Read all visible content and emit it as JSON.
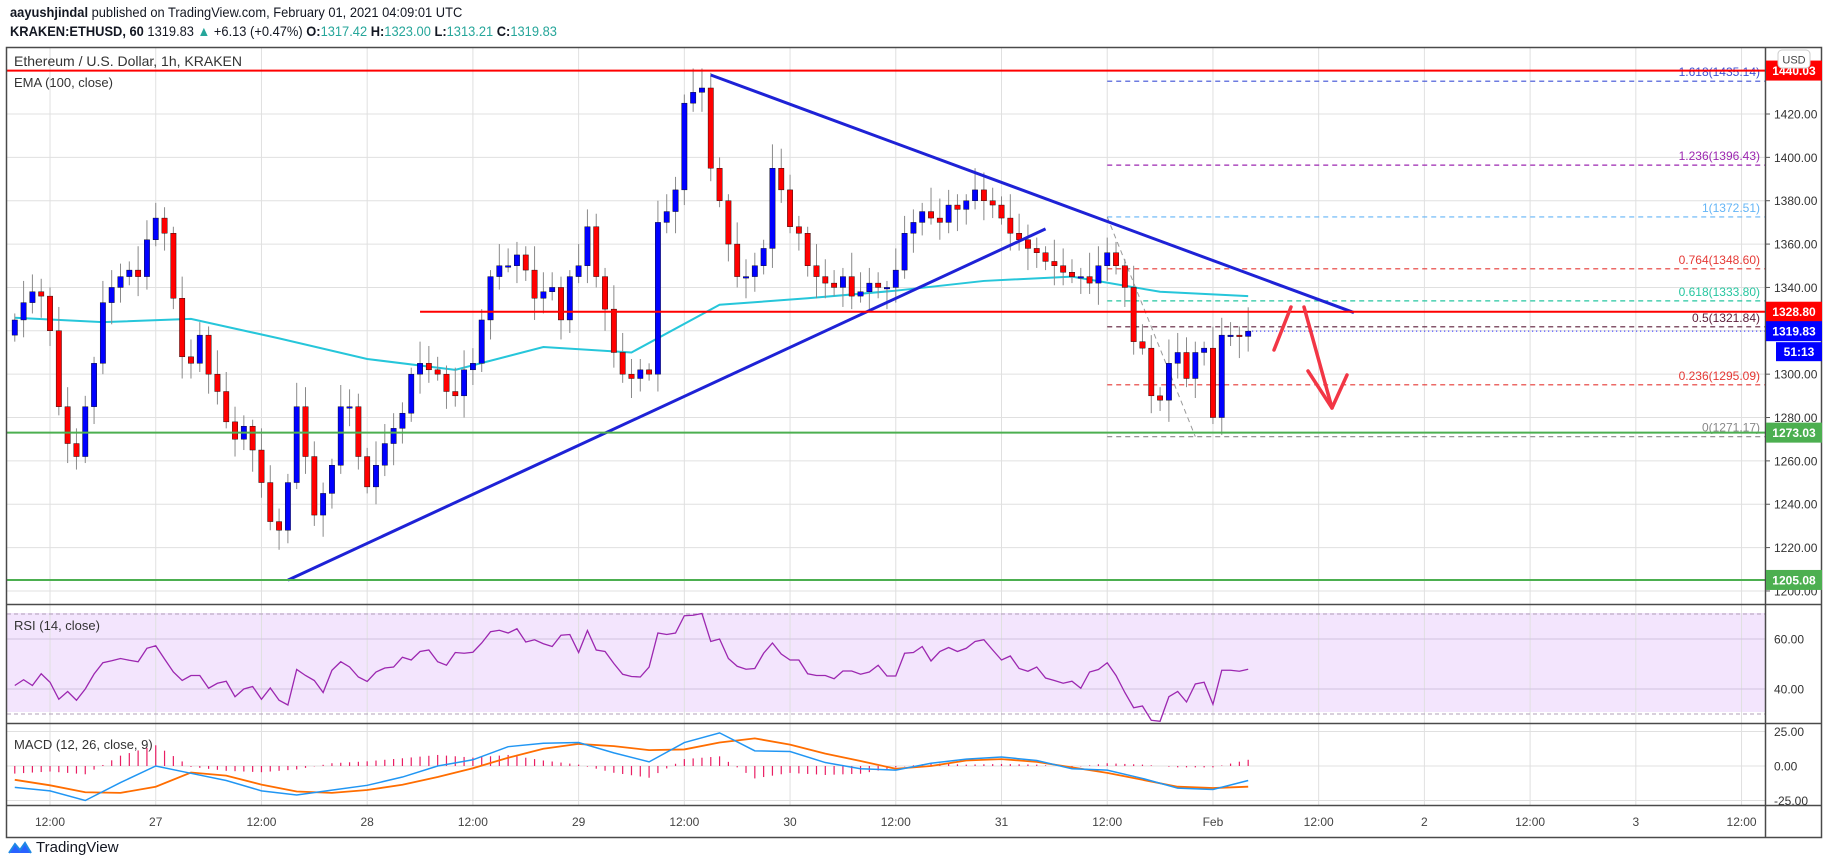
{
  "header": {
    "author": "aayushjindal",
    "published": "published on TradingView.com, February 01, 2021 04:09:01 UTC",
    "symbol": "KRAKEN:ETHUSD, 60",
    "last": "1319.83",
    "change": "+6.13 (+0.47%)",
    "o_label": "O:",
    "o": "1317.42",
    "h_label": "H:",
    "h": "1323.00",
    "l_label": "L:",
    "l": "1313.21",
    "c_label": "C:",
    "c": "1319.83"
  },
  "legend": {
    "title": "Ethereum / U.S. Dollar, 1h, KRAKEN",
    "ema": "EMA (100, close)",
    "rsi": "RSI (14, close)",
    "macd": "MACD (12, 26, close, 9)"
  },
  "currency_button": "USD",
  "brand": "TradingView",
  "colors": {
    "bull": "#0000ff",
    "bear": "#ff0000",
    "ema": "#26c6da",
    "trendline": "#1e22d6",
    "resistance": "#ff0000",
    "support": "#4caf50",
    "rsi_line": "#9c27b0",
    "rsi_band": "#f3e5fd",
    "macd_line": "#2196f3",
    "signal_line": "#ff6d00",
    "histogram": "#e91e63",
    "arrow": "#f23645"
  },
  "chart_data": {
    "type": "candlestick",
    "interval": "1h",
    "first_candle": "2021-01-26 08:00",
    "ylim": [
      1195,
      1445
    ],
    "price_ticks": [
      1200,
      1220,
      1240,
      1260,
      1280,
      1300,
      1340,
      1360,
      1380,
      1400,
      1420
    ],
    "x_ticks": [
      {
        "t": "2021-01-26 12:00",
        "label": "12:00"
      },
      {
        "t": "2021-01-27 00:00",
        "label": "27"
      },
      {
        "t": "2021-01-27 12:00",
        "label": "12:00"
      },
      {
        "t": "2021-01-28 00:00",
        "label": "28"
      },
      {
        "t": "2021-01-28 12:00",
        "label": "12:00"
      },
      {
        "t": "2021-01-29 00:00",
        "label": "29"
      },
      {
        "t": "2021-01-29 12:00",
        "label": "12:00"
      },
      {
        "t": "2021-01-30 00:00",
        "label": "30"
      },
      {
        "t": "2021-01-30 12:00",
        "label": "12:00"
      },
      {
        "t": "2021-01-31 00:00",
        "label": "31"
      },
      {
        "t": "2021-01-31 12:00",
        "label": "12:00"
      },
      {
        "t": "2021-02-01 00:00",
        "label": "Feb"
      },
      {
        "t": "2021-02-01 12:00",
        "label": "12:00"
      },
      {
        "t": "2021-02-02 00:00",
        "label": "2"
      },
      {
        "t": "2021-02-02 12:00",
        "label": "12:00"
      },
      {
        "t": "2021-02-03 00:00",
        "label": "3"
      },
      {
        "t": "2021-02-03 12:00",
        "label": "12:00"
      }
    ],
    "closes": [
      1325,
      1333,
      1338,
      1336,
      1320,
      1285,
      1268,
      1262,
      1285,
      1305,
      1333,
      1340,
      1345,
      1348,
      1345,
      1362,
      1372,
      1365,
      1335,
      1308,
      1305,
      1318,
      1300,
      1292,
      1278,
      1270,
      1276,
      1265,
      1250,
      1232,
      1228,
      1250,
      1285,
      1262,
      1235,
      1245,
      1258,
      1285,
      1285,
      1262,
      1248,
      1258,
      1268,
      1275,
      1282,
      1300,
      1305,
      1302,
      1300,
      1292,
      1290,
      1302,
      1305,
      1325,
      1345,
      1350,
      1350,
      1355,
      1348,
      1335,
      1338,
      1340,
      1325,
      1345,
      1350,
      1368,
      1345,
      1330,
      1310,
      1300,
      1298,
      1302,
      1300,
      1370,
      1375,
      1385,
      1425,
      1430,
      1432,
      1395,
      1380,
      1360,
      1345,
      1345,
      1350,
      1358,
      1395,
      1385,
      1368,
      1365,
      1350,
      1345,
      1342,
      1340,
      1345,
      1336,
      1338,
      1342,
      1340,
      1340,
      1348,
      1365,
      1370,
      1375,
      1372,
      1370,
      1378,
      1376,
      1380,
      1385,
      1380,
      1378,
      1372,
      1365,
      1362,
      1358,
      1356,
      1352,
      1350,
      1347,
      1345,
      1345,
      1342,
      1350,
      1356,
      1350,
      1340,
      1315,
      1312,
      1290,
      1288,
      1305,
      1310,
      1298,
      1310,
      1312,
      1280,
      1318,
      1318,
      1317.42,
      1319.83
    ],
    "ema100": {
      "interval": "10h",
      "values": [
        1326,
        1324,
        1325.5,
        1316.5,
        1307,
        1302,
        1312.5,
        1310,
        1332,
        1335,
        1338.5,
        1343,
        1345,
        1338,
        1336
      ]
    },
    "horizontal_lines": [
      {
        "price": 1440.03,
        "label": "1440.03",
        "kind": "resistance"
      },
      {
        "price": 1328.8,
        "label": "1328.80",
        "kind": "resistance",
        "from": "2021-01-28 06:00"
      },
      {
        "price": 1273.03,
        "label": "1273.03",
        "kind": "support"
      },
      {
        "price": 1205.08,
        "label": "1205.08",
        "kind": "support"
      }
    ],
    "trendlines": [
      {
        "from": [
          "2021-01-27 15:00",
          1205
        ],
        "to": [
          "2021-01-31 05:00",
          1367
        ]
      },
      {
        "from": [
          "2021-01-29 15:00",
          1438
        ],
        "to": [
          "2021-02-01 16:00",
          1328.4
        ]
      }
    ],
    "fibonacci": {
      "from": "2021-01-31 12:00",
      "diagonal": {
        "from": [
          "2021-01-31 12:00",
          1372.51
        ],
        "to": [
          "2021-01-31 22:00",
          1271.17
        ]
      },
      "levels": [
        {
          "ratio": "1.618",
          "price": 1435.14,
          "label": "1.618(1435.14)",
          "color": "#3f51d6"
        },
        {
          "ratio": "1.236",
          "price": 1396.43,
          "label": "1.236(1396.43)",
          "color": "#9c27b0"
        },
        {
          "ratio": "1",
          "price": 1372.51,
          "label": "1(1372.51)",
          "color": "#64b5f6"
        },
        {
          "ratio": "0.764",
          "price": 1348.6,
          "label": "0.764(1348.60)",
          "color": "#e53935"
        },
        {
          "ratio": "0.618",
          "price": 1333.8,
          "label": "0.618(1333.80)",
          "color": "#26c6a0"
        },
        {
          "ratio": "0.5",
          "price": 1321.84,
          "label": "0.5(1321.84)",
          "color": "#5d1e3a"
        },
        {
          "ratio": "0.236",
          "price": 1295.09,
          "label": "0.236(1295.09)",
          "color": "#e53935"
        },
        {
          "ratio": "0",
          "price": 1271.17,
          "label": "0(1271.17)",
          "color": "#888888"
        }
      ]
    },
    "last_price": {
      "price": 1319.83,
      "label": "1319.83",
      "countdown": "51:13"
    },
    "rsi": {
      "levels": [
        70,
        30
      ],
      "ticks": [
        {
          "v": 60,
          "label": "60.00"
        },
        {
          "v": 40,
          "label": "40.00"
        }
      ],
      "values": [
        41.4,
        43.7,
        41.4,
        46.1,
        42.7,
        35.9,
        39,
        35.5,
        40,
        46,
        50.5,
        51.3,
        52.2,
        51.5,
        50.9,
        56.3,
        57.3,
        52,
        46.8,
        43.4,
        45.4,
        45.4,
        40.3,
        42.3,
        43.1,
        36.9,
        40,
        41,
        35.9,
        40.4,
        35.5,
        33.6,
        47.8,
        45.4,
        43.4,
        38.6,
        47.5,
        50.9,
        48.8,
        44.8,
        43,
        46.8,
        48.4,
        48.8,
        52.7,
        51.6,
        55,
        55.6,
        50.9,
        49.5,
        54.6,
        54.3,
        54.7,
        58.4,
        62.9,
        63.5,
        62.4,
        64.1,
        58.8,
        59.7,
        58.1,
        57,
        61.5,
        61.8,
        54.6,
        63.4,
        55.6,
        55,
        50.2,
        45.9,
        45,
        44.8,
        48.8,
        62.4,
        61.8,
        62.4,
        69.3,
        69.5,
        70.2,
        59,
        60,
        52.2,
        49.1,
        47.9,
        48.2,
        54.3,
        58.4,
        54,
        51.6,
        51.6,
        46.1,
        45.4,
        45.4,
        44.1,
        47.2,
        47.2,
        45.9,
        46.8,
        49.5,
        45.2,
        45.2,
        54.3,
        54.6,
        57,
        51.2,
        55,
        56.6,
        55,
        56.3,
        59,
        59.7,
        55.6,
        51.6,
        53.2,
        48.2,
        47.1,
        48.8,
        44.4,
        43.4,
        42.3,
        43.1,
        40.3,
        46.8,
        47.8,
        50.5,
        45.4,
        38.6,
        32.5,
        33.2,
        27.5,
        27.1,
        36.9,
        39,
        34.8,
        42,
        42.7,
        33.9,
        47.5,
        47.5,
        47.1,
        47.9
      ]
    },
    "macd": {
      "interval": "4h",
      "ticks": [
        {
          "v": 25,
          "label": "25.00"
        },
        {
          "v": 0,
          "label": "0.00"
        },
        {
          "v": -25,
          "label": "-25.00"
        }
      ],
      "macd": [
        -15.5,
        -18,
        -25,
        -12,
        0,
        -5.3,
        -10.5,
        -18,
        -21,
        -17.5,
        -14,
        -8,
        0,
        4.5,
        14,
        16.5,
        17,
        9.5,
        3,
        17,
        24,
        11,
        10.5,
        2.5,
        -2,
        -3,
        2,
        5,
        6.5,
        4,
        -2,
        -3,
        -9,
        -16,
        -17,
        -10.5
      ],
      "signal": [
        -10,
        -14,
        -19,
        -19.5,
        -15,
        -4.7,
        -7,
        -13.5,
        -18.5,
        -19.5,
        -17.4,
        -13.6,
        -8,
        -1.6,
        6,
        12.5,
        16,
        14.4,
        11.5,
        12,
        17,
        20,
        15.5,
        9,
        3.6,
        -2,
        0,
        4,
        5,
        3,
        -1,
        -5,
        -10,
        -15,
        -16,
        -15
      ]
    }
  }
}
